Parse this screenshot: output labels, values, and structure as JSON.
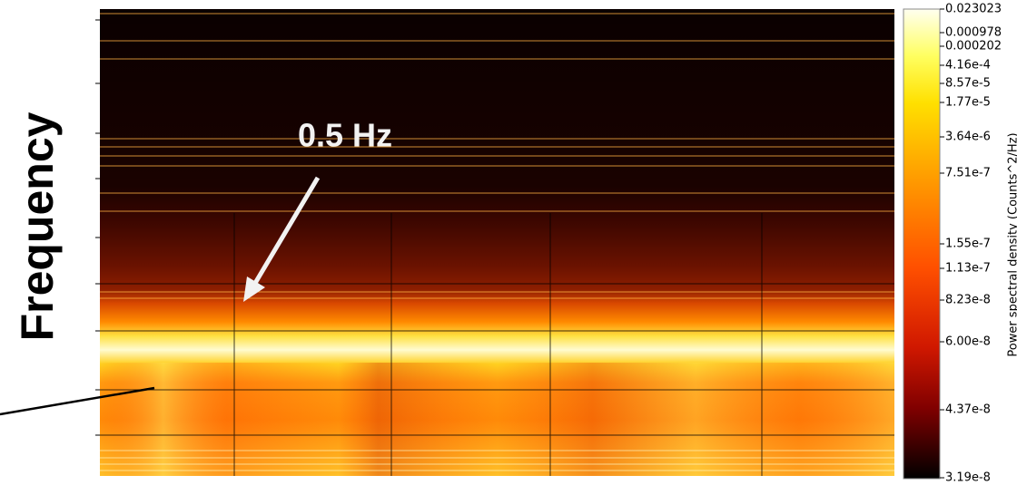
{
  "chart_data": {
    "type": "heatmap",
    "ylabel": "Frequency",
    "annotation": "0.5 Hz",
    "colorbar": {
      "label": "Power spectral density (Counts^2/Hz)",
      "ticks": [
        0.023023,
        0.000978,
        0.000202,
        {
          "value": 0.000416,
          "label": "4.16e-4"
        },
        {
          "value": 8.57e-05,
          "label": "8.57e-5"
        },
        {
          "value": 1.77e-05,
          "label": "1.77e-5"
        },
        {
          "value": 3.64e-06,
          "label": "3.64e-6"
        },
        {
          "value": 7.51e-07,
          "label": "7.51e-7"
        },
        {
          "value": 1.55e-07,
          "label": "1.55e-7"
        },
        {
          "value": 1.13e-07,
          "label": "1.13e-7"
        },
        {
          "value": 8.23e-08,
          "label": "8.23e-8"
        },
        {
          "value": 6e-08,
          "label": "6.00e-8"
        },
        {
          "value": 4.37e-08,
          "label": "4.37e-8"
        },
        {
          "value": 3.19e-08,
          "label": "3.19e-8"
        }
      ]
    }
  }
}
